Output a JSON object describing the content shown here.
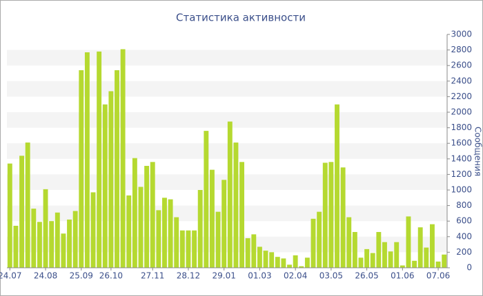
{
  "chart_data": {
    "type": "bar",
    "title": "Статистика активности",
    "y_axis_label": "Сообщения",
    "categories": [
      "24.07",
      null,
      null,
      null,
      null,
      null,
      "24.08",
      null,
      null,
      null,
      null,
      null,
      "25.09",
      null,
      null,
      null,
      null,
      "26.10",
      null,
      null,
      null,
      null,
      null,
      null,
      "27.11",
      null,
      null,
      null,
      null,
      null,
      "28.12",
      null,
      null,
      null,
      null,
      null,
      "29.01",
      null,
      null,
      null,
      null,
      null,
      "01.03",
      null,
      null,
      null,
      null,
      null,
      "02.04",
      null,
      null,
      null,
      null,
      null,
      "03.05",
      null,
      null,
      null,
      null,
      null,
      "26.05",
      null,
      null,
      null,
      null,
      null,
      "01.06",
      null,
      null,
      null,
      null,
      null,
      "07.06",
      null
    ],
    "values": [
      1340,
      540,
      1440,
      1610,
      760,
      590,
      1010,
      600,
      710,
      440,
      620,
      730,
      2540,
      2770,
      970,
      2780,
      2100,
      2270,
      2540,
      2810,
      930,
      1410,
      1040,
      1310,
      1360,
      740,
      900,
      880,
      650,
      480,
      480,
      480,
      1000,
      1760,
      1260,
      720,
      1130,
      1880,
      1610,
      1360,
      380,
      430,
      270,
      220,
      200,
      140,
      120,
      40,
      160,
      20,
      130,
      630,
      720,
      1350,
      1360,
      2100,
      1290,
      650,
      460,
      130,
      240,
      190,
      460,
      330,
      210,
      330,
      30,
      660,
      90,
      520,
      260,
      560,
      80,
      170
    ],
    "color": "#b5d930",
    "ylim": [
      0,
      3000
    ],
    "yticks": [
      0,
      200,
      400,
      600,
      800,
      1000,
      1200,
      1400,
      1600,
      1800,
      2000,
      2200,
      2400,
      2600,
      2800,
      3000
    ],
    "grid": true
  }
}
